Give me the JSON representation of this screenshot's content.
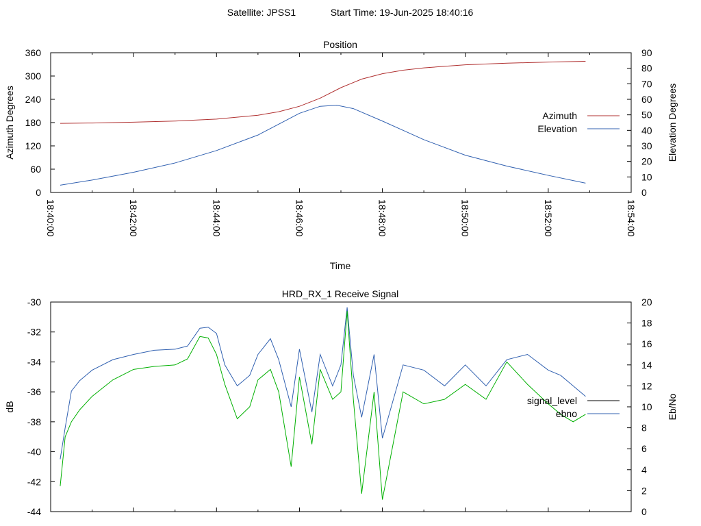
{
  "figure": {
    "header_satellite": "Satellite: JPSS1",
    "header_start": "Start Time: 19-Jun-2025 18:40:16"
  },
  "chart_data": [
    {
      "type": "line",
      "title": "Position",
      "xlabel": "Time",
      "ylabel": "Azimuth Degrees",
      "y2label": "Elevation Degrees",
      "x_tick_labels": [
        "18:40:00",
        "18:42:00",
        "18:44:00",
        "18:46:00",
        "18:48:00",
        "18:50:00",
        "18:52:00",
        "18:54:00"
      ],
      "xlim_minutes": [
        0,
        14
      ],
      "ylim": [
        0,
        360
      ],
      "y_ticks": [
        0,
        60,
        120,
        180,
        240,
        300,
        360
      ],
      "y2lim": [
        0,
        90
      ],
      "y2_ticks": [
        0,
        10,
        20,
        30,
        40,
        50,
        60,
        70,
        80,
        90
      ],
      "grid": false,
      "legend_position": "right",
      "series": [
        {
          "name": "Azimuth",
          "axis": "left",
          "color": "#b03030",
          "x_minutes": [
            0.23,
            1,
            2,
            3,
            4,
            5,
            5.5,
            6,
            6.5,
            7,
            7.5,
            8,
            8.5,
            9,
            10,
            11,
            12,
            12.9
          ],
          "values": [
            178,
            179,
            181,
            184,
            189,
            199,
            208,
            222,
            243,
            270,
            292,
            306,
            315,
            321,
            329,
            333,
            336,
            338
          ]
        },
        {
          "name": "Elevation",
          "axis": "right",
          "color": "#3060b0",
          "x_minutes": [
            0.23,
            1,
            2,
            3,
            4,
            5,
            5.5,
            6,
            6.5,
            6.9,
            7.3,
            8,
            8.5,
            9,
            10,
            11,
            12,
            12.9
          ],
          "values": [
            4.7,
            8,
            13,
            19,
            27,
            37,
            44,
            51,
            55.5,
            56.2,
            54,
            46,
            40,
            34,
            24,
            17,
            11,
            6
          ]
        }
      ]
    },
    {
      "type": "line",
      "title": "HRD_RX_1 Receive Signal",
      "ylabel": "dB",
      "y2label": "Eb/No",
      "xlim_minutes": [
        0,
        14
      ],
      "ylim": [
        -44,
        -30
      ],
      "y_ticks": [
        -44,
        -42,
        -40,
        -38,
        -36,
        -34,
        -32,
        -30
      ],
      "y2lim": [
        0,
        20
      ],
      "y2_ticks": [
        0,
        2,
        4,
        6,
        8,
        10,
        12,
        14,
        16,
        18,
        20
      ],
      "grid": false,
      "legend_position": "right",
      "series": [
        {
          "name": "signal_level",
          "axis": "left",
          "color": "#000000",
          "x_minutes": [],
          "values": []
        },
        {
          "name": "ebno",
          "axis": "right",
          "color": "#3060b0",
          "x_minutes": [
            0.23,
            0.35,
            0.5,
            0.7,
            1.0,
            1.5,
            2.0,
            2.5,
            3.0,
            3.3,
            3.6,
            3.8,
            4.0,
            4.2,
            4.5,
            4.8,
            5.0,
            5.3,
            5.5,
            5.8,
            6.0,
            6.3,
            6.5,
            6.8,
            7.0,
            7.15,
            7.3,
            7.5,
            7.8,
            8.0,
            8.5,
            9.0,
            9.5,
            10.0,
            10.5,
            11.0,
            11.5,
            12.0,
            12.3,
            12.6,
            12.9
          ],
          "values": [
            5.0,
            8.0,
            11.5,
            12.5,
            13.5,
            14.5,
            15.0,
            15.4,
            15.5,
            15.8,
            17.5,
            17.6,
            17.0,
            14.0,
            12.0,
            13.0,
            15.0,
            16.5,
            14.5,
            10.0,
            15.5,
            9.5,
            15.0,
            12.0,
            14.0,
            19.5,
            13.0,
            9.0,
            15.0,
            7.0,
            14.0,
            13.5,
            12.0,
            14.0,
            12.0,
            14.5,
            15.0,
            13.5,
            13.0,
            12.0,
            11.0
          ]
        },
        {
          "name": "",
          "axis": "left",
          "color": "#00b000",
          "x_minutes": [
            0.23,
            0.35,
            0.5,
            0.7,
            1.0,
            1.5,
            2.0,
            2.5,
            3.0,
            3.3,
            3.6,
            3.8,
            4.0,
            4.2,
            4.5,
            4.8,
            5.0,
            5.3,
            5.5,
            5.8,
            6.0,
            6.3,
            6.5,
            6.8,
            7.0,
            7.15,
            7.3,
            7.5,
            7.8,
            8.0,
            8.5,
            9.0,
            9.5,
            10.0,
            10.5,
            11.0,
            11.5,
            12.0,
            12.3,
            12.6,
            12.9
          ],
          "values": [
            -42.3,
            -39.0,
            -38.0,
            -37.2,
            -36.3,
            -35.2,
            -34.5,
            -34.3,
            -34.2,
            -33.8,
            -32.3,
            -32.4,
            -33.5,
            -35.5,
            -37.8,
            -37.0,
            -35.2,
            -34.5,
            -36.0,
            -41.0,
            -35.0,
            -39.5,
            -34.5,
            -36.5,
            -36.0,
            -30.6,
            -36.5,
            -42.8,
            -36.0,
            -43.2,
            -36.0,
            -36.8,
            -36.5,
            -35.5,
            -36.5,
            -34.0,
            -35.5,
            -36.8,
            -37.5,
            -38.0,
            -37.5
          ]
        }
      ]
    }
  ]
}
